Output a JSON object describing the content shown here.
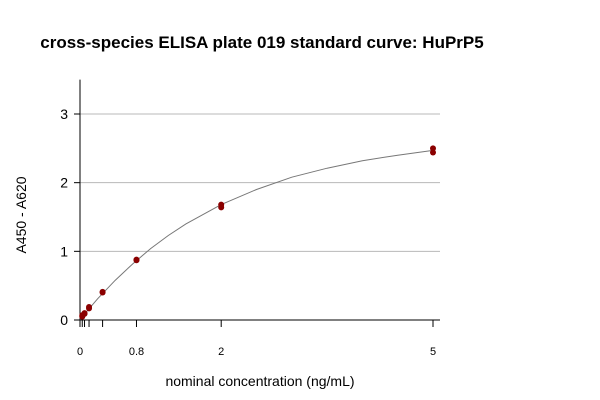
{
  "chart_data": {
    "type": "scatter",
    "title": "cross-species ELISA plate 019 standard curve: HuPrP5",
    "xlabel": "nominal concentration (ng/mL)",
    "ylabel": "A450 - A620",
    "xlim": [
      0,
      5
    ],
    "ylim": [
      0,
      3.5
    ],
    "x_ticks": [
      0,
      0.032,
      0.064,
      0.128,
      0.32,
      0.8,
      2,
      5
    ],
    "x_tick_labels": [
      "0",
      "",
      "",
      "",
      "",
      "0.8",
      "2",
      "5"
    ],
    "y_ticks": [
      0,
      1,
      2,
      3
    ],
    "y_tick_labels": [
      "0",
      "1",
      "2",
      "3"
    ],
    "grid": "horizontal",
    "point_color": "#8b0000",
    "curve_color": "#777777",
    "points": {
      "x": [
        0.032,
        0.032,
        0.064,
        0.064,
        0.128,
        0.128,
        0.32,
        0.32,
        0.8,
        0.8,
        2,
        2,
        5,
        5
      ],
      "y": [
        0.05,
        0.07,
        0.09,
        0.1,
        0.17,
        0.19,
        0.4,
        0.41,
        0.87,
        0.88,
        1.64,
        1.68,
        2.44,
        2.5
      ]
    },
    "fitted_curve": {
      "x": [
        0,
        0.1,
        0.25,
        0.5,
        0.75,
        1,
        1.25,
        1.5,
        2,
        2.5,
        3,
        3.5,
        4,
        4.5,
        5
      ],
      "y": [
        0.02,
        0.13,
        0.31,
        0.58,
        0.82,
        1.04,
        1.23,
        1.4,
        1.68,
        1.9,
        2.08,
        2.21,
        2.32,
        2.4,
        2.47
      ]
    }
  }
}
